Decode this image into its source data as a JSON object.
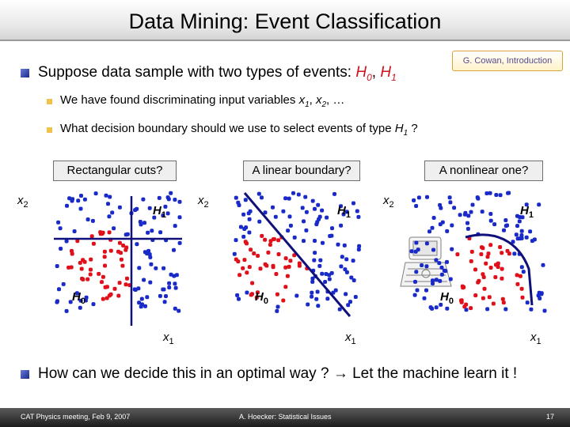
{
  "slide": {
    "title": "Data Mining: Event Classification",
    "badge": "G. Cowan, Introduction",
    "main_bullet": {
      "text": "Suppose data sample with two types of events: ",
      "h0": "H0",
      "sep": ", ",
      "h1": "H1"
    },
    "sub1": {
      "pre": "We have found discriminating input variables ",
      "v1": "x1",
      "sep": ", ",
      "v2": "x2",
      "post": ", …"
    },
    "sub2": {
      "pre": "What decision boundary should we use to select events of type ",
      "h": "H1",
      "post": " ?"
    },
    "bottom_bullet": {
      "pre": "How can we decide this in an optimal way ? ",
      "arrow": "→",
      "post": " Let the machine learn it !"
    }
  },
  "panels": [
    {
      "caption": "Rectangular cuts?",
      "xlabel": "x1",
      "ylabel": "x2",
      "h1": "H1",
      "h0": "H0"
    },
    {
      "caption": "A linear boundary?",
      "xlabel": "x1",
      "ylabel": "x2",
      "h1": "H1",
      "h0": "H0"
    },
    {
      "caption": "A nonlinear one?",
      "xlabel": "x1",
      "ylabel": "x2",
      "h1": "H1",
      "h0": "H0"
    }
  ],
  "colors": {
    "signal_h0": "#e0101a",
    "background_h1": "#1a2ac8",
    "boundary": "#10107a",
    "badge_border": "#d6a43a"
  },
  "footer": {
    "left": "CAT Physics meeting, Feb 9, 2007",
    "center": "A. Hoecker: Statistical Issues",
    "page": "17"
  }
}
